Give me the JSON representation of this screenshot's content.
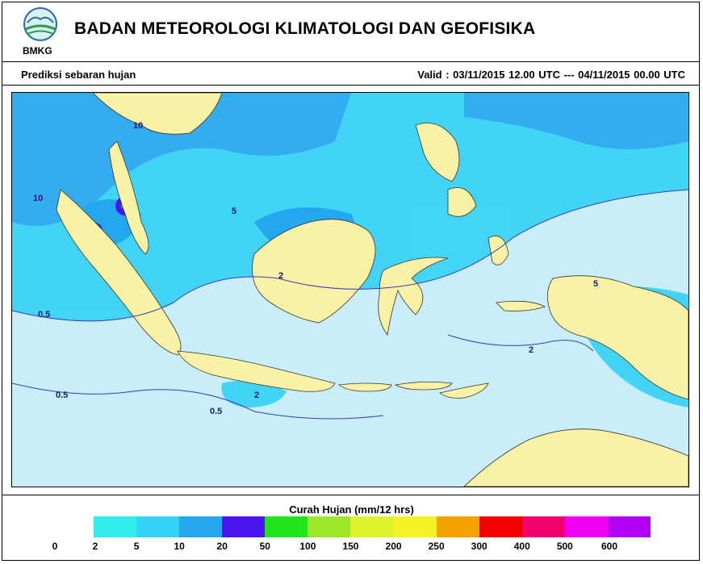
{
  "header": {
    "logo_label": "BMKG",
    "agency": "BADAN METEOROLOGI KLIMATOLOGI DAN GEOFISIKA",
    "subtitle": "Prediksi sebaran hujan",
    "valid": "Valid : 03/11/2015  12.00 UTC --- 04/11/2015  00.00 UTC"
  },
  "map": {
    "type": "rainfall forecast map",
    "region": "Indonesia",
    "land_color": "#f9f1a5",
    "sea_color": "#c9eef9",
    "contour_labels": [
      "0.5",
      "0.5",
      "0.5",
      "2",
      "2",
      "2",
      "5",
      "5",
      "10",
      "10"
    ]
  },
  "legend": {
    "title": "Curah Hujan (mm/12 hrs)",
    "labels": [
      "0",
      "2",
      "5",
      "10",
      "20",
      "50",
      "100",
      "150",
      "200",
      "250",
      "300",
      "400",
      "500",
      "600"
    ],
    "colors": [
      "#33eded",
      "#33d2f7",
      "#23a7ee",
      "#4b14f0",
      "#22e31c",
      "#9be82b",
      "#dcf22b",
      "#f4f223",
      "#f5a100",
      "#f20000",
      "#f2006e",
      "#f200f2",
      "#b200f2"
    ]
  }
}
